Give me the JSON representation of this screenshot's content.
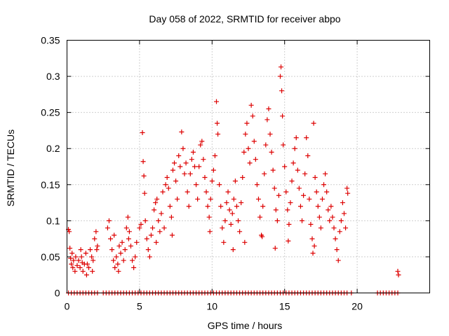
{
  "chart_data": {
    "type": "scatter",
    "title": "Day 058 of 2022, SRMTID for receiver abpo",
    "xlabel": "GPS time / hours",
    "ylabel": "SRMTID / TECUs",
    "xlim": [
      0,
      25
    ],
    "ylim": [
      0,
      0.35
    ],
    "xticks": [
      0,
      5,
      10,
      15,
      20
    ],
    "xtick_labels": [
      "0",
      "5",
      "10",
      "15",
      "20"
    ],
    "yticks": [
      0,
      0.05,
      0.1,
      0.15,
      0.2,
      0.25,
      0.3,
      0.35
    ],
    "ytick_labels": [
      "0",
      "0.05",
      "0.1",
      "0.15",
      "0.2",
      "0.25",
      "0.3",
      "0.35"
    ],
    "grid": true,
    "marker": "+",
    "color": "#dd0000",
    "series": [
      {
        "name": "SRMTID",
        "points": [
          [
            0.1,
            0.088
          ],
          [
            0.15,
            0.085
          ],
          [
            0.2,
            0.062
          ],
          [
            0.25,
            0.048
          ],
          [
            0.3,
            0.04
          ],
          [
            0.35,
            0.055
          ],
          [
            0.4,
            0.035
          ],
          [
            0.45,
            0.045
          ],
          [
            0.6,
            0.05
          ],
          [
            0.7,
            0.038
          ],
          [
            0.8,
            0.045
          ],
          [
            0.9,
            0.035
          ],
          [
            1.0,
            0.05
          ],
          [
            1.05,
            0.042
          ],
          [
            1.1,
            0.03
          ],
          [
            1.2,
            0.04
          ],
          [
            1.3,
            0.055
          ],
          [
            1.4,
            0.04
          ],
          [
            1.5,
            0.035
          ],
          [
            1.6,
            0.06
          ],
          [
            1.7,
            0.05
          ],
          [
            1.8,
            0.045
          ],
          [
            1.9,
            0.075
          ],
          [
            2.0,
            0.085
          ],
          [
            2.05,
            0.06
          ],
          [
            2.1,
            0.065
          ],
          [
            1.75,
            0.03
          ],
          [
            1.35,
            0.025
          ],
          [
            0.55,
            0.03
          ],
          [
            0.95,
            0.06
          ],
          [
            2.8,
            0.09
          ],
          [
            2.9,
            0.1
          ],
          [
            3.0,
            0.075
          ],
          [
            3.1,
            0.06
          ],
          [
            3.2,
            0.045
          ],
          [
            3.3,
            0.035
          ],
          [
            3.4,
            0.05
          ],
          [
            3.5,
            0.04
          ],
          [
            3.6,
            0.065
          ],
          [
            3.7,
            0.055
          ],
          [
            3.8,
            0.07
          ],
          [
            3.9,
            0.045
          ],
          [
            4.0,
            0.06
          ],
          [
            4.1,
            0.09
          ],
          [
            4.2,
            0.105
          ],
          [
            4.3,
            0.085
          ],
          [
            4.4,
            0.065
          ],
          [
            4.5,
            0.045
          ],
          [
            4.6,
            0.035
          ],
          [
            4.7,
            0.05
          ],
          [
            4.8,
            0.07
          ],
          [
            3.25,
            0.08
          ],
          [
            3.55,
            0.03
          ],
          [
            4.25,
            0.075
          ],
          [
            5.0,
            0.09
          ],
          [
            5.1,
            0.095
          ],
          [
            5.2,
            0.222
          ],
          [
            5.25,
            0.182
          ],
          [
            5.3,
            0.162
          ],
          [
            5.35,
            0.138
          ],
          [
            5.4,
            0.1
          ],
          [
            5.5,
            0.075
          ],
          [
            5.6,
            0.06
          ],
          [
            5.7,
            0.05
          ],
          [
            5.8,
            0.08
          ],
          [
            5.9,
            0.09
          ],
          [
            6.0,
            0.115
          ],
          [
            6.1,
            0.125
          ],
          [
            6.2,
            0.13
          ],
          [
            6.3,
            0.1
          ],
          [
            6.4,
            0.085
          ],
          [
            6.5,
            0.11
          ],
          [
            6.6,
            0.14
          ],
          [
            6.7,
            0.09
          ],
          [
            6.8,
            0.15
          ],
          [
            6.9,
            0.16
          ],
          [
            7.0,
            0.145
          ],
          [
            7.1,
            0.12
          ],
          [
            7.2,
            0.105
          ],
          [
            7.3,
            0.17
          ],
          [
            7.4,
            0.18
          ],
          [
            7.5,
            0.155
          ],
          [
            7.6,
            0.13
          ],
          [
            7.7,
            0.19
          ],
          [
            7.8,
            0.175
          ],
          [
            7.9,
            0.223
          ],
          [
            8.0,
            0.2
          ],
          [
            8.1,
            0.165
          ],
          [
            8.2,
            0.18
          ],
          [
            8.3,
            0.14
          ],
          [
            8.4,
            0.12
          ],
          [
            8.5,
            0.165
          ],
          [
            8.6,
            0.185
          ],
          [
            8.7,
            0.195
          ],
          [
            8.8,
            0.175
          ],
          [
            8.9,
            0.15
          ],
          [
            9.0,
            0.13
          ],
          [
            9.1,
            0.175
          ],
          [
            9.2,
            0.205
          ],
          [
            9.3,
            0.21
          ],
          [
            9.4,
            0.185
          ],
          [
            9.5,
            0.16
          ],
          [
            9.6,
            0.14
          ],
          [
            9.7,
            0.12
          ],
          [
            9.8,
            0.105
          ],
          [
            9.9,
            0.13
          ],
          [
            10.0,
            0.155
          ],
          [
            10.1,
            0.17
          ],
          [
            10.2,
            0.19
          ],
          [
            10.3,
            0.265
          ],
          [
            10.35,
            0.235
          ],
          [
            10.4,
            0.22
          ],
          [
            10.5,
            0.15
          ],
          [
            10.6,
            0.12
          ],
          [
            10.7,
            0.09
          ],
          [
            10.8,
            0.07
          ],
          [
            10.9,
            0.1
          ],
          [
            11.0,
            0.125
          ],
          [
            11.1,
            0.14
          ],
          [
            11.2,
            0.115
          ],
          [
            11.3,
            0.095
          ],
          [
            11.4,
            0.11
          ],
          [
            11.5,
            0.13
          ],
          [
            11.6,
            0.155
          ],
          [
            11.7,
            0.12
          ],
          [
            11.8,
            0.1
          ],
          [
            11.9,
            0.085
          ],
          [
            12.0,
            0.125
          ],
          [
            12.1,
            0.16
          ],
          [
            12.2,
            0.195
          ],
          [
            12.3,
            0.22
          ],
          [
            12.4,
            0.235
          ],
          [
            12.5,
            0.2
          ],
          [
            12.6,
            0.18
          ],
          [
            12.7,
            0.26
          ],
          [
            12.8,
            0.245
          ],
          [
            12.9,
            0.21
          ],
          [
            13.0,
            0.185
          ],
          [
            13.1,
            0.15
          ],
          [
            13.2,
            0.13
          ],
          [
            13.3,
            0.105
          ],
          [
            13.4,
            0.08
          ],
          [
            13.5,
            0.12
          ],
          [
            13.6,
            0.165
          ],
          [
            13.7,
            0.205
          ],
          [
            13.8,
            0.24
          ],
          [
            13.9,
            0.255
          ],
          [
            14.0,
            0.22
          ],
          [
            14.1,
            0.195
          ],
          [
            14.2,
            0.17
          ],
          [
            14.3,
            0.145
          ],
          [
            14.4,
            0.115
          ],
          [
            14.5,
            0.1
          ],
          [
            14.6,
            0.135
          ],
          [
            14.7,
            0.3
          ],
          [
            14.75,
            0.313
          ],
          [
            14.8,
            0.28
          ],
          [
            14.85,
            0.245
          ],
          [
            14.9,
            0.205
          ],
          [
            15.0,
            0.175
          ],
          [
            15.1,
            0.14
          ],
          [
            15.2,
            0.115
          ],
          [
            15.3,
            0.095
          ],
          [
            15.4,
            0.125
          ],
          [
            15.5,
            0.155
          ],
          [
            15.6,
            0.18
          ],
          [
            15.7,
            0.2
          ],
          [
            15.8,
            0.215
          ],
          [
            15.9,
            0.17
          ],
          [
            16.0,
            0.145
          ],
          [
            16.1,
            0.12
          ],
          [
            16.2,
            0.1
          ],
          [
            16.3,
            0.135
          ],
          [
            16.4,
            0.165
          ],
          [
            16.5,
            0.215
          ],
          [
            16.6,
            0.19
          ],
          [
            16.7,
            0.13
          ],
          [
            16.8,
            0.095
          ],
          [
            16.9,
            0.075
          ],
          [
            17.0,
            0.235
          ],
          [
            17.1,
            0.16
          ],
          [
            17.2,
            0.14
          ],
          [
            17.3,
            0.12
          ],
          [
            17.4,
            0.105
          ],
          [
            17.5,
            0.09
          ],
          [
            17.6,
            0.13
          ],
          [
            17.7,
            0.15
          ],
          [
            17.8,
            0.165
          ],
          [
            17.9,
            0.14
          ],
          [
            18.0,
            0.115
          ],
          [
            18.1,
            0.1
          ],
          [
            18.2,
            0.12
          ],
          [
            18.3,
            0.105
          ],
          [
            18.4,
            0.09
          ],
          [
            18.5,
            0.075
          ],
          [
            18.6,
            0.06
          ],
          [
            18.7,
            0.045
          ],
          [
            18.8,
            0.085
          ],
          [
            18.9,
            0.1
          ],
          [
            19.0,
            0.125
          ],
          [
            19.1,
            0.11
          ],
          [
            19.2,
            0.09
          ],
          [
            19.3,
            0.145
          ],
          [
            19.35,
            0.138
          ],
          [
            16.95,
            0.055
          ],
          [
            17.05,
            0.065
          ],
          [
            6.15,
            0.07
          ],
          [
            7.25,
            0.08
          ],
          [
            9.85,
            0.085
          ],
          [
            11.45,
            0.06
          ],
          [
            13.45,
            0.078
          ],
          [
            14.35,
            0.062
          ],
          [
            15.25,
            0.072
          ],
          [
            12.25,
            0.07
          ],
          [
            22.8,
            0.03
          ],
          [
            22.85,
            0.025
          ]
        ],
        "baseline": [
          [
            0.1,
            0
          ],
          [
            0.3,
            0
          ],
          [
            0.5,
            0
          ],
          [
            0.7,
            0
          ],
          [
            0.9,
            0
          ],
          [
            1.1,
            0
          ],
          [
            1.3,
            0
          ],
          [
            1.5,
            0
          ],
          [
            1.7,
            0
          ],
          [
            1.9,
            0
          ],
          [
            2.1,
            0
          ],
          [
            2.5,
            0
          ],
          [
            2.7,
            0
          ],
          [
            2.9,
            0
          ],
          [
            3.1,
            0
          ],
          [
            3.3,
            0
          ],
          [
            3.5,
            0
          ],
          [
            3.7,
            0
          ],
          [
            3.9,
            0
          ],
          [
            4.1,
            0
          ],
          [
            4.3,
            0
          ],
          [
            4.5,
            0
          ],
          [
            4.7,
            0
          ],
          [
            4.9,
            0
          ],
          [
            5.1,
            0
          ],
          [
            5.3,
            0
          ],
          [
            5.5,
            0
          ],
          [
            5.7,
            0
          ],
          [
            5.9,
            0
          ],
          [
            6.1,
            0
          ],
          [
            6.3,
            0
          ],
          [
            6.5,
            0
          ],
          [
            6.7,
            0
          ],
          [
            6.9,
            0
          ],
          [
            7.1,
            0
          ],
          [
            7.3,
            0
          ],
          [
            7.5,
            0
          ],
          [
            7.7,
            0
          ],
          [
            7.9,
            0
          ],
          [
            8.1,
            0
          ],
          [
            8.3,
            0
          ],
          [
            8.5,
            0
          ],
          [
            8.7,
            0
          ],
          [
            8.9,
            0
          ],
          [
            9.1,
            0
          ],
          [
            9.3,
            0
          ],
          [
            9.5,
            0
          ],
          [
            9.7,
            0
          ],
          [
            9.9,
            0
          ],
          [
            10.1,
            0
          ],
          [
            10.3,
            0
          ],
          [
            10.5,
            0
          ],
          [
            10.7,
            0
          ],
          [
            10.9,
            0
          ],
          [
            11.1,
            0
          ],
          [
            11.3,
            0
          ],
          [
            11.5,
            0
          ],
          [
            11.7,
            0
          ],
          [
            11.9,
            0
          ],
          [
            12.1,
            0
          ],
          [
            12.3,
            0
          ],
          [
            12.5,
            0
          ],
          [
            12.7,
            0
          ],
          [
            12.9,
            0
          ],
          [
            13.1,
            0
          ],
          [
            13.3,
            0
          ],
          [
            13.5,
            0
          ],
          [
            13.7,
            0
          ],
          [
            13.9,
            0
          ],
          [
            14.1,
            0
          ],
          [
            14.3,
            0
          ],
          [
            14.5,
            0
          ],
          [
            14.7,
            0
          ],
          [
            14.9,
            0
          ],
          [
            15.1,
            0
          ],
          [
            15.3,
            0
          ],
          [
            15.5,
            0
          ],
          [
            15.7,
            0
          ],
          [
            15.9,
            0
          ],
          [
            16.1,
            0
          ],
          [
            16.3,
            0
          ],
          [
            16.5,
            0
          ],
          [
            16.7,
            0
          ],
          [
            16.9,
            0
          ],
          [
            17.1,
            0
          ],
          [
            17.3,
            0
          ],
          [
            17.5,
            0
          ],
          [
            17.7,
            0
          ],
          [
            17.9,
            0
          ],
          [
            18.1,
            0
          ],
          [
            18.3,
            0
          ],
          [
            18.5,
            0
          ],
          [
            18.7,
            0
          ],
          [
            18.9,
            0
          ],
          [
            19.1,
            0
          ],
          [
            19.3,
            0
          ],
          [
            19.6,
            0
          ],
          [
            21.4,
            0
          ],
          [
            21.6,
            0
          ],
          [
            21.8,
            0
          ],
          [
            22.0,
            0
          ],
          [
            22.2,
            0
          ],
          [
            22.4,
            0
          ],
          [
            22.6,
            0
          ],
          [
            22.8,
            0
          ]
        ]
      }
    ]
  }
}
